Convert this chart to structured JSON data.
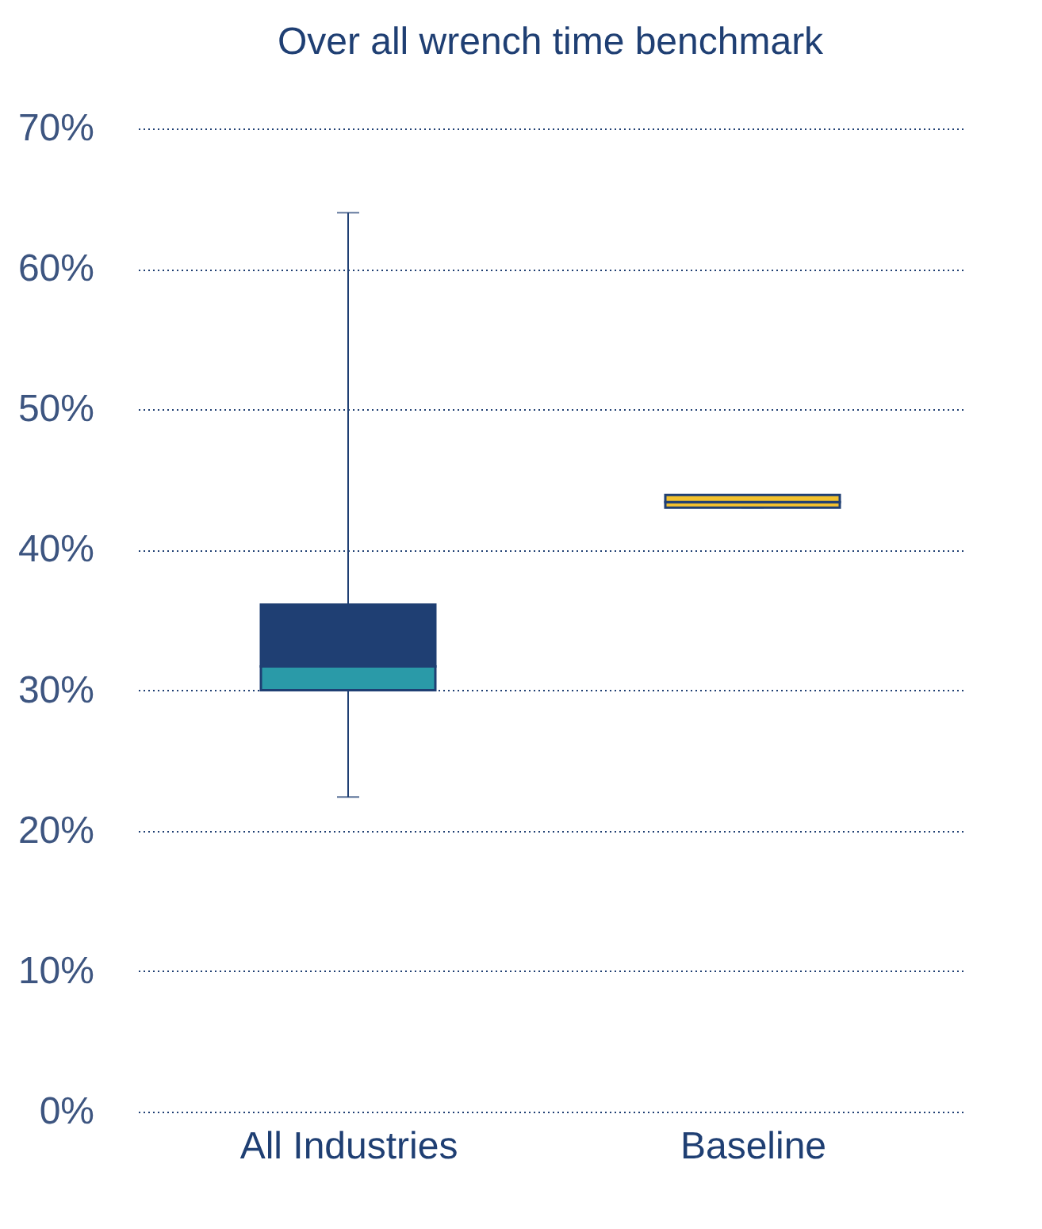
{
  "chart_data": {
    "type": "box",
    "title": "Over all wrench time benchmark",
    "categories": [
      "All Industries",
      "Baseline"
    ],
    "boxes": [
      {
        "low": 22.4,
        "q1": 30,
        "median": 31.7,
        "q3": 36.1,
        "high": 64
      },
      {
        "low": 43,
        "q1": 43,
        "median": 43.4,
        "q3": 43.9,
        "high": 43.9
      }
    ],
    "colors": [
      [
        "#2a9aa8",
        "#1f3f73"
      ],
      [
        "#f2c12e",
        "#f2c12e"
      ]
    ],
    "ylim": [
      0,
      70
    ],
    "yticks": [
      {
        "value": 0,
        "label": "0%"
      },
      {
        "value": 10,
        "label": "10%"
      },
      {
        "value": 20,
        "label": "20%"
      },
      {
        "value": 30,
        "label": "30%"
      },
      {
        "value": 40,
        "label": "40%"
      },
      {
        "value": 50,
        "label": "50%"
      },
      {
        "value": 60,
        "label": "60%"
      },
      {
        "value": 70,
        "label": "70%"
      }
    ],
    "grid": "y"
  }
}
